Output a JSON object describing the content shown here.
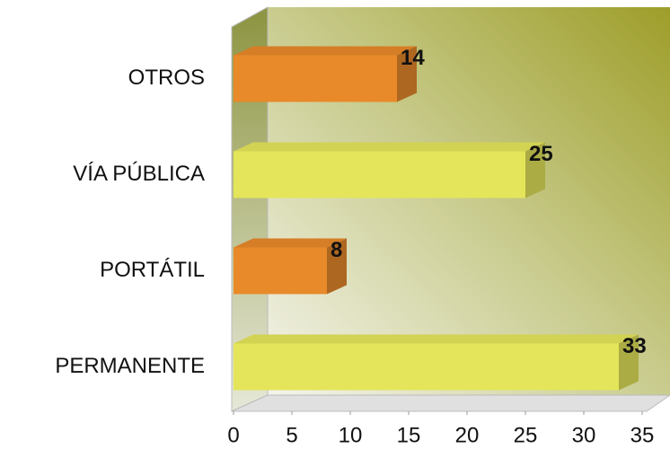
{
  "chart_data": {
    "type": "bar3d_horizontal",
    "categories": [
      "OTROS",
      "VÍA PÚBLICA",
      "PORTÁTIL",
      "PERMANENTE"
    ],
    "values": [
      14,
      25,
      8,
      33
    ],
    "colors": [
      "#e8892a",
      "#e4e55a",
      "#e8892a",
      "#e4e55a"
    ],
    "xlim": [
      0,
      35
    ],
    "xticks": [
      0,
      5,
      10,
      15,
      20,
      25,
      30,
      35
    ]
  }
}
